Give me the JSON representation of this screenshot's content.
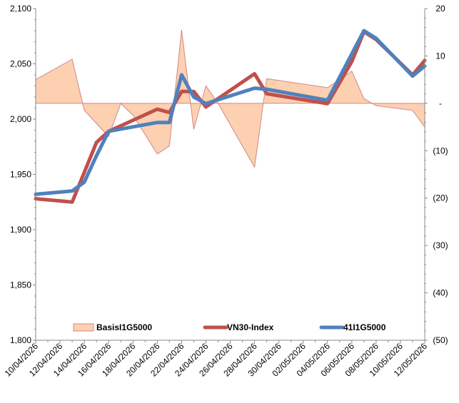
{
  "chart_data": {
    "type": "line",
    "title": "",
    "xlabel": "",
    "ylabel": "",
    "y2label": "",
    "legend_position": "bottom",
    "grid": false,
    "x_tick_labels": [
      "10/04/2026",
      "12/04/2026",
      "14/04/2026",
      "16/04/2026",
      "18/04/2026",
      "20/04/2026",
      "22/04/2026",
      "24/04/2026",
      "26/04/2026",
      "28/04/2026",
      "30/04/2026",
      "02/05/2026",
      "04/05/2026",
      "06/05/2026",
      "08/05/2026",
      "10/05/2026",
      "12/05/2026"
    ],
    "y_left": {
      "range": [
        1800,
        2100
      ],
      "tick_labels": [
        "1,800",
        "1,850",
        "1,900",
        "1,950",
        "2,000",
        "2,050",
        "2,100"
      ],
      "ticks": [
        1800,
        1850,
        1900,
        1950,
        2000,
        2050,
        2100
      ]
    },
    "y_right": {
      "range": [
        -50,
        20
      ],
      "tick_labels": [
        "(50)",
        "(40)",
        "(30)",
        "(20)",
        "(10)",
        "-",
        "10",
        "20"
      ],
      "ticks": [
        -50,
        -40,
        -30,
        -20,
        -10,
        0,
        10,
        20
      ]
    },
    "series": [
      {
        "name": "BasisI1G5000",
        "kind": "area",
        "axis": "right",
        "color": "#fcd0b0",
        "stroke": "#d08888",
        "points": [
          [
            "2026-04-10",
            5
          ],
          [
            "2026-04-13",
            9.3
          ],
          [
            "2026-04-14",
            -1.5
          ],
          [
            "2026-04-16",
            -7
          ],
          [
            "2026-04-17",
            0
          ],
          [
            "2026-04-18",
            -2.5
          ],
          [
            "2026-04-20",
            -10.7
          ],
          [
            "2026-04-21",
            -9
          ],
          [
            "2026-04-22",
            15.5
          ],
          [
            "2026-04-23",
            -5.5
          ],
          [
            "2026-04-24",
            3.7
          ],
          [
            "2026-04-25",
            0
          ],
          [
            "2026-04-28",
            -13.5
          ],
          [
            "2026-04-29",
            5.2
          ],
          [
            "2026-05-04",
            3.3
          ],
          [
            "2026-05-06",
            6.8
          ],
          [
            "2026-05-07",
            1
          ],
          [
            "2026-05-08",
            -0.5
          ],
          [
            "2026-05-11",
            -1.5
          ],
          [
            "2026-05-12",
            -5
          ]
        ]
      },
      {
        "name": "VN30-Index",
        "kind": "line",
        "axis": "left",
        "color": "#c0504d",
        "points": [
          [
            "2026-04-10",
            1928
          ],
          [
            "2026-04-13",
            1925
          ],
          [
            "2026-04-15",
            1979
          ],
          [
            "2026-04-16",
            1989
          ],
          [
            "2026-04-20",
            2009
          ],
          [
            "2026-04-21",
            2006
          ],
          [
            "2026-04-22",
            2025
          ],
          [
            "2026-04-23",
            2025
          ],
          [
            "2026-04-24",
            2011
          ],
          [
            "2026-04-28",
            2041
          ],
          [
            "2026-04-29",
            2023
          ],
          [
            "2026-05-04",
            2014
          ],
          [
            "2026-05-06",
            2052
          ],
          [
            "2026-05-07",
            2079
          ],
          [
            "2026-05-08",
            2072
          ],
          [
            "2026-05-11",
            2040
          ],
          [
            "2026-05-12",
            2053
          ]
        ]
      },
      {
        "name": "41I1G5000",
        "kind": "line",
        "axis": "left",
        "color": "#4f81bd",
        "points": [
          [
            "2026-04-10",
            1932
          ],
          [
            "2026-04-13",
            1935
          ],
          [
            "2026-04-14",
            1943
          ],
          [
            "2026-04-15",
            1967
          ],
          [
            "2026-04-16",
            1989
          ],
          [
            "2026-04-17",
            1991
          ],
          [
            "2026-04-20",
            1997
          ],
          [
            "2026-04-21",
            1997
          ],
          [
            "2026-04-22",
            2040
          ],
          [
            "2026-04-23",
            2020
          ],
          [
            "2026-04-24",
            2014
          ],
          [
            "2026-04-28",
            2028
          ],
          [
            "2026-04-29",
            2027
          ],
          [
            "2026-05-04",
            2017
          ],
          [
            "2026-05-06",
            2059
          ],
          [
            "2026-05-07",
            2080
          ],
          [
            "2026-05-08",
            2073
          ],
          [
            "2026-05-11",
            2039
          ],
          [
            "2026-05-12",
            2048
          ]
        ]
      }
    ]
  }
}
